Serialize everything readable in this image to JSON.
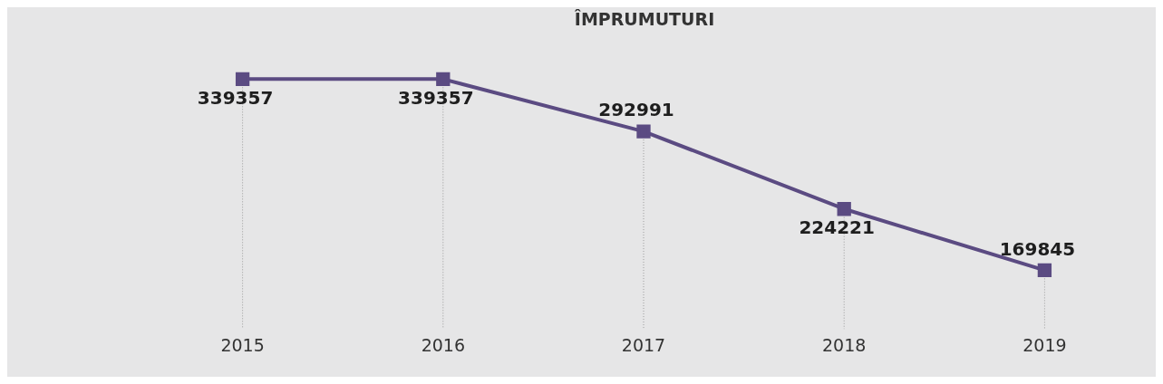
{
  "chart_data": {
    "type": "line",
    "title": "ÎMPRUMUTURI",
    "categories": [
      "2015",
      "2016",
      "2017",
      "2018",
      "2019"
    ],
    "series": [
      {
        "color": "#5b4b82",
        "values": [
          339357,
          339357,
          292991,
          224221,
          169845
        ]
      }
    ],
    "data_labels": true,
    "marker": "square",
    "line_style": "solid",
    "grid": "x",
    "legend": false
  }
}
